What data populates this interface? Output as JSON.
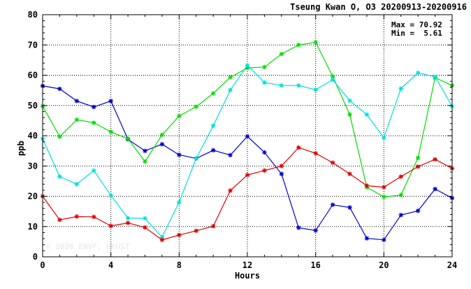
{
  "chart_data": {
    "type": "line",
    "title": "Tseung Kwan O, O3 20200913-20200916",
    "xlabel": "Hours",
    "ylabel": "ppb",
    "xlim": [
      0,
      24
    ],
    "ylim": [
      0,
      80
    ],
    "x_ticks": [
      "0",
      "4",
      "8",
      "12",
      "16",
      "20",
      "24"
    ],
    "y_ticks": [
      "0",
      "10",
      "20",
      "30",
      "40",
      "50",
      "60",
      "70",
      "80"
    ],
    "grid": true,
    "stats": {
      "max_label": "Max =",
      "max_value": "70.92",
      "min_label": "Min =",
      "min_value": "5.61"
    },
    "watermark": "© 2026  ENVF, HKUST",
    "x": [
      0,
      1,
      2,
      3,
      4,
      5,
      6,
      7,
      8,
      9,
      10,
      11,
      12,
      13,
      14,
      15,
      16,
      17,
      18,
      19,
      20,
      21,
      22,
      23,
      24
    ],
    "series": [
      {
        "color": "#0000cc",
        "values": [
          56.5,
          55.5,
          51.5,
          49.5,
          51.5,
          38.8,
          35.0,
          37.2,
          33.7,
          32.5,
          35.2,
          33.6,
          39.8,
          34.5,
          27.4,
          9.6,
          8.7,
          17.2,
          16.3,
          6.1,
          5.6,
          13.8,
          15.2,
          22.4,
          19.4
        ]
      },
      {
        "color": "#00dd00",
        "values": [
          49.8,
          39.7,
          45.3,
          44.3,
          41.3,
          39.0,
          31.5,
          40.3,
          46.5,
          49.6,
          54.0,
          59.3,
          62.4,
          62.7,
          67.0,
          70.0,
          70.9,
          59.6,
          47.0,
          23.0,
          19.8,
          20.4,
          32.7,
          59.2,
          56.6
        ]
      },
      {
        "color": "#00dddd",
        "values": [
          39.0,
          26.5,
          24.0,
          28.5,
          20.3,
          12.8,
          12.7,
          6.5,
          18.0,
          32.5,
          43.3,
          55.1,
          63.3,
          57.6,
          56.6,
          56.6,
          55.2,
          58.5,
          51.6,
          47.0,
          39.3,
          55.6,
          60.8,
          59.5,
          49.7
        ]
      },
      {
        "color": "#dd0000",
        "values": [
          20.0,
          12.2,
          13.3,
          13.2,
          10.2,
          11.2,
          9.7,
          5.6,
          7.2,
          8.6,
          10.1,
          21.9,
          27.0,
          28.5,
          30.0,
          36.1,
          34.2,
          31.1,
          27.4,
          23.5,
          23.0,
          26.5,
          29.8,
          32.2,
          29.2
        ]
      }
    ]
  }
}
